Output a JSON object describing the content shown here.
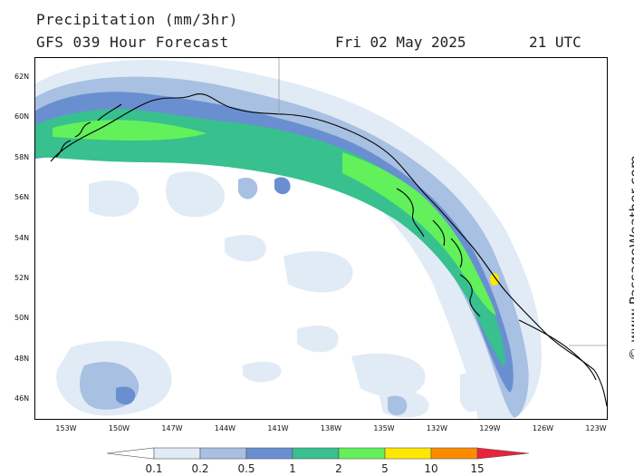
{
  "header": {
    "title": "Precipitation (mm/3hr)",
    "subtitle": "GFS 039 Hour Forecast",
    "date": "Fri 02 May 2025",
    "time": "21 UTC"
  },
  "credit": "© www.PassageWeather.com",
  "map": {
    "region": "Gulf of Alaska / British Columbia coast",
    "lat_labels": [
      "62N",
      "60N",
      "58N",
      "56N",
      "54N",
      "52N",
      "50N",
      "48N",
      "46N"
    ],
    "lon_labels": [
      "153W",
      "150W",
      "147W",
      "144W",
      "141W",
      "138W",
      "135W",
      "132W",
      "129W",
      "126W",
      "123W"
    ],
    "colors": {
      "frame": "#000000",
      "coast": "#000000",
      "border": "#9a9a9a"
    }
  },
  "legend": {
    "labels": [
      "0.1",
      "0.2",
      "0.5",
      "1",
      "2",
      "5",
      "10",
      "15"
    ],
    "colors": [
      "#ffffff",
      "#e1ebf6",
      "#a8c0e2",
      "#6a8fd0",
      "#38c08f",
      "#62f05b",
      "#ffe800",
      "#ff8c00",
      "#e8233c"
    ]
  }
}
